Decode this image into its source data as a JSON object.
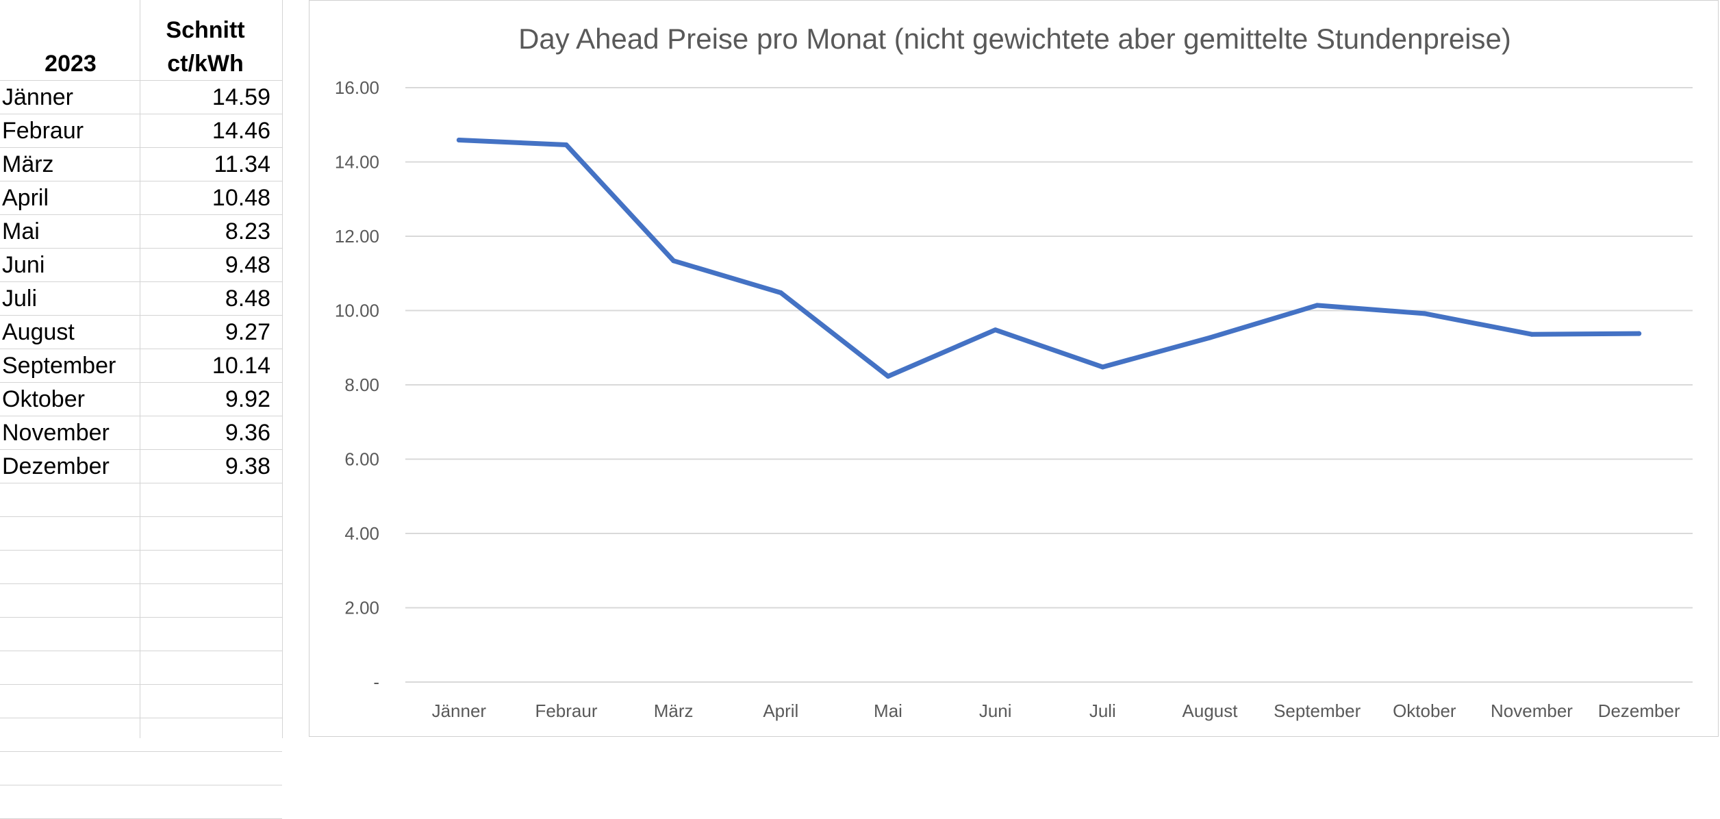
{
  "table": {
    "header_year": "2023",
    "header_col_line1": "Schnitt",
    "header_col_line2": "ct/kWh",
    "rows": [
      {
        "month": "Jänner",
        "value": "14.59"
      },
      {
        "month": "Febraur",
        "value": "14.46"
      },
      {
        "month": "März",
        "value": "11.34"
      },
      {
        "month": "April",
        "value": "10.48"
      },
      {
        "month": "Mai",
        "value": "8.23"
      },
      {
        "month": "Juni",
        "value": "9.48"
      },
      {
        "month": "Juli",
        "value": "8.48"
      },
      {
        "month": "August",
        "value": "9.27"
      },
      {
        "month": "September",
        "value": "10.14"
      },
      {
        "month": "Oktober",
        "value": "9.92"
      },
      {
        "month": "November",
        "value": "9.36"
      },
      {
        "month": "Dezember",
        "value": "9.38"
      }
    ]
  },
  "chart_data": {
    "type": "line",
    "title": "Day Ahead Preise pro Monat (nicht gewichtete aber gemittelte Stundenpreise)",
    "categories": [
      "Jänner",
      "Febraur",
      "März",
      "April",
      "Mai",
      "Juni",
      "Juli",
      "August",
      "September",
      "Oktober",
      "November",
      "Dezember"
    ],
    "series": [
      {
        "values": [
          14.59,
          14.46,
          11.34,
          10.48,
          8.23,
          9.48,
          8.48,
          9.27,
          10.14,
          9.92,
          9.36,
          9.38
        ],
        "color": "#4472c4"
      }
    ],
    "y_ticks": [
      "-",
      "2.00",
      "4.00",
      "6.00",
      "8.00",
      "10.00",
      "12.00",
      "14.00",
      "16.00"
    ],
    "ylim": [
      0,
      16
    ],
    "grid": true,
    "legend": "none",
    "xlabel": "",
    "ylabel": ""
  }
}
